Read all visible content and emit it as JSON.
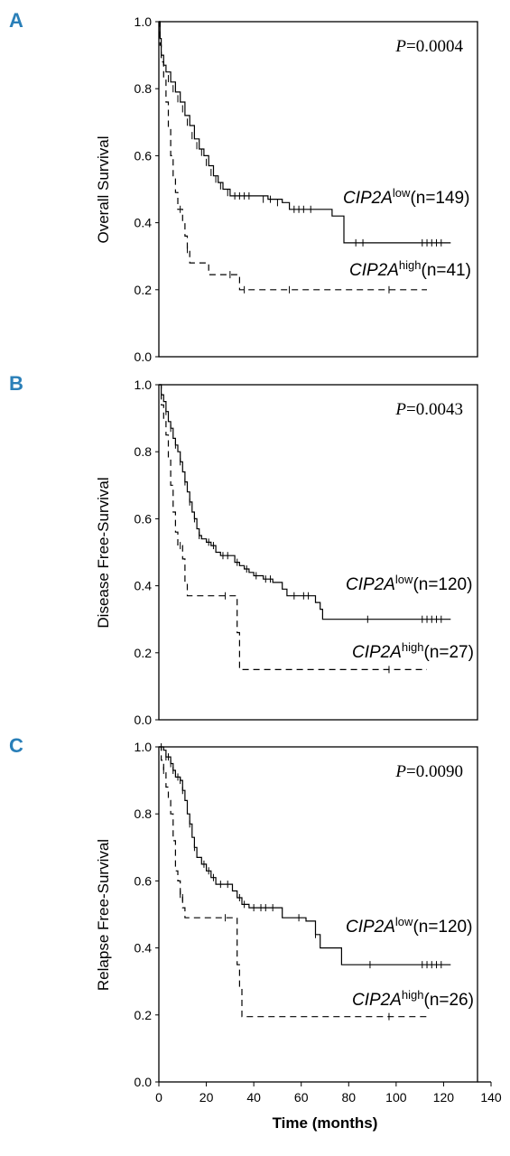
{
  "chart_data": [
    {
      "type": "line",
      "panel": "A",
      "ylabel": "Overall Survival",
      "ylim": [
        0,
        1.0
      ],
      "yticks": [
        "0.0",
        "0.2",
        "0.4",
        "0.6",
        "0.8",
        "1.0"
      ],
      "xlim": [
        0,
        140
      ],
      "p_value": "P=0.0004",
      "series": [
        {
          "name": "CIP2Alow (n=149)",
          "label_gene": "CIP2A",
          "label_sup": "low",
          "label_n": "(n=149)",
          "style": "solid",
          "steps": [
            [
              0,
              1.0
            ],
            [
              0.5,
              0.95
            ],
            [
              1,
              0.9
            ],
            [
              2,
              0.87
            ],
            [
              3,
              0.85
            ],
            [
              5,
              0.82
            ],
            [
              7,
              0.79
            ],
            [
              9,
              0.76
            ],
            [
              11,
              0.72
            ],
            [
              13,
              0.69
            ],
            [
              15,
              0.65
            ],
            [
              17,
              0.62
            ],
            [
              19,
              0.6
            ],
            [
              21,
              0.57
            ],
            [
              23,
              0.54
            ],
            [
              25,
              0.52
            ],
            [
              27,
              0.5
            ],
            [
              30,
              0.48
            ],
            [
              39,
              0.48
            ],
            [
              46,
              0.47
            ],
            [
              52,
              0.46
            ],
            [
              55,
              0.44
            ],
            [
              64,
              0.44
            ],
            [
              73,
              0.42
            ],
            [
              76,
              0.42
            ],
            [
              78,
              0.34
            ],
            [
              123,
              0.34
            ]
          ],
          "censors": [
            [
              4,
              0.83
            ],
            [
              6,
              0.8
            ],
            [
              8,
              0.77
            ],
            [
              10,
              0.74
            ],
            [
              12,
              0.7
            ],
            [
              14,
              0.66
            ],
            [
              16,
              0.63
            ],
            [
              18,
              0.61
            ],
            [
              20,
              0.58
            ],
            [
              22,
              0.55
            ],
            [
              24,
              0.53
            ],
            [
              26,
              0.51
            ],
            [
              29,
              0.49
            ],
            [
              32,
              0.48
            ],
            [
              34,
              0.48
            ],
            [
              36,
              0.48
            ],
            [
              38,
              0.48
            ],
            [
              44,
              0.47
            ],
            [
              47,
              0.47
            ],
            [
              50,
              0.46
            ],
            [
              57,
              0.44
            ],
            [
              59,
              0.44
            ],
            [
              61,
              0.44
            ],
            [
              64,
              0.44
            ],
            [
              83,
              0.34
            ],
            [
              86,
              0.34
            ],
            [
              111,
              0.34
            ],
            [
              113,
              0.34
            ],
            [
              115,
              0.34
            ],
            [
              117,
              0.34
            ],
            [
              119,
              0.34
            ]
          ]
        },
        {
          "name": "CIP2Ahigh (n=41)",
          "label_gene": "CIP2A",
          "label_sup": "high",
          "label_n": "(n=41)",
          "style": "dashed",
          "steps": [
            [
              0,
              1.0
            ],
            [
              0.5,
              0.93
            ],
            [
              1,
              0.88
            ],
            [
              2,
              0.83
            ],
            [
              3,
              0.76
            ],
            [
              4,
              0.68
            ],
            [
              5,
              0.6
            ],
            [
              6,
              0.54
            ],
            [
              7,
              0.49
            ],
            [
              8,
              0.44
            ],
            [
              10,
              0.4
            ],
            [
              11,
              0.36
            ],
            [
              12,
              0.32
            ],
            [
              13,
              0.28
            ],
            [
              20,
              0.28
            ],
            [
              21,
              0.245
            ],
            [
              33,
              0.245
            ],
            [
              34,
              0.2
            ],
            [
              113,
              0.2
            ]
          ],
          "censors": [
            [
              9,
              0.44
            ],
            [
              12,
              0.32
            ],
            [
              30,
              0.245
            ],
            [
              36,
              0.2
            ],
            [
              55,
              0.2
            ],
            [
              97,
              0.2
            ]
          ]
        }
      ]
    },
    {
      "type": "line",
      "panel": "B",
      "ylabel": "Disease Free-Survival",
      "ylim": [
        0,
        1.0
      ],
      "yticks": [
        "0.0",
        "0.2",
        "0.4",
        "0.6",
        "0.8",
        "1.0"
      ],
      "xlim": [
        0,
        140
      ],
      "p_value": "P=0.0043",
      "series": [
        {
          "name": "CIP2Alow(n=120)",
          "label_gene": "CIP2A",
          "label_sup": "low",
          "label_n": "(n=120)",
          "style": "solid",
          "steps": [
            [
              0,
              1.0
            ],
            [
              1,
              0.97
            ],
            [
              2,
              0.95
            ],
            [
              3,
              0.92
            ],
            [
              4,
              0.89
            ],
            [
              5,
              0.87
            ],
            [
              6,
              0.84
            ],
            [
              7,
              0.82
            ],
            [
              8,
              0.8
            ],
            [
              9,
              0.77
            ],
            [
              10,
              0.74
            ],
            [
              11,
              0.71
            ],
            [
              12,
              0.68
            ],
            [
              13,
              0.65
            ],
            [
              14,
              0.62
            ],
            [
              15,
              0.6
            ],
            [
              16,
              0.57
            ],
            [
              17,
              0.55
            ],
            [
              18,
              0.54
            ],
            [
              20,
              0.53
            ],
            [
              22,
              0.52
            ],
            [
              24,
              0.5
            ],
            [
              26,
              0.49
            ],
            [
              30,
              0.49
            ],
            [
              32,
              0.47
            ],
            [
              34,
              0.46
            ],
            [
              36,
              0.45
            ],
            [
              38,
              0.44
            ],
            [
              40,
              0.43
            ],
            [
              44,
              0.42
            ],
            [
              48,
              0.41
            ],
            [
              52,
              0.39
            ],
            [
              54,
              0.37
            ],
            [
              64,
              0.37
            ],
            [
              66,
              0.35
            ],
            [
              68,
              0.33
            ],
            [
              69,
              0.3
            ],
            [
              123,
              0.3
            ]
          ],
          "censors": [
            [
              3,
              0.92
            ],
            [
              5,
              0.87
            ],
            [
              7,
              0.82
            ],
            [
              9,
              0.77
            ],
            [
              11,
              0.71
            ],
            [
              13,
              0.65
            ],
            [
              15,
              0.6
            ],
            [
              17,
              0.55
            ],
            [
              21,
              0.53
            ],
            [
              23,
              0.52
            ],
            [
              27,
              0.49
            ],
            [
              29,
              0.49
            ],
            [
              33,
              0.47
            ],
            [
              37,
              0.45
            ],
            [
              41,
              0.43
            ],
            [
              45,
              0.42
            ],
            [
              47,
              0.42
            ],
            [
              57,
              0.37
            ],
            [
              61,
              0.37
            ],
            [
              63,
              0.37
            ],
            [
              88,
              0.3
            ],
            [
              111,
              0.3
            ],
            [
              113,
              0.3
            ],
            [
              115,
              0.3
            ],
            [
              117,
              0.3
            ],
            [
              119,
              0.3
            ]
          ]
        },
        {
          "name": "CIP2Ahigh(n=27)",
          "label_gene": "CIP2A",
          "label_sup": "high",
          "label_n": "(n=27)",
          "style": "dashed",
          "steps": [
            [
              0,
              1.0
            ],
            [
              1,
              0.94
            ],
            [
              2,
              0.9
            ],
            [
              3,
              0.85
            ],
            [
              4,
              0.78
            ],
            [
              5,
              0.7
            ],
            [
              6,
              0.62
            ],
            [
              7,
              0.56
            ],
            [
              8,
              0.52
            ],
            [
              10,
              0.48
            ],
            [
              11,
              0.41
            ],
            [
              12,
              0.37
            ],
            [
              32,
              0.37
            ],
            [
              33,
              0.26
            ],
            [
              34,
              0.15
            ],
            [
              113,
              0.15
            ]
          ],
          "censors": [
            [
              9,
              0.52
            ],
            [
              28,
              0.37
            ],
            [
              97,
              0.15
            ]
          ]
        }
      ]
    },
    {
      "type": "line",
      "panel": "C",
      "ylabel": "Relapse Free-Survival",
      "xlabel": "Time (months)",
      "ylim": [
        0,
        1.0
      ],
      "yticks": [
        "0.0",
        "0.2",
        "0.4",
        "0.6",
        "0.8",
        "1.0"
      ],
      "xlim": [
        0,
        140
      ],
      "xticks": [
        "0",
        "20",
        "40",
        "60",
        "80",
        "100",
        "120",
        "140"
      ],
      "p_value": "P=0.0090",
      "series": [
        {
          "name": "CIP2Alow(n=120)",
          "label_gene": "CIP2A",
          "label_sup": "low",
          "label_n": "(n=120)",
          "style": "solid",
          "steps": [
            [
              0,
              1.0
            ],
            [
              2,
              0.99
            ],
            [
              3,
              0.97
            ],
            [
              5,
              0.95
            ],
            [
              6,
              0.93
            ],
            [
              7,
              0.91
            ],
            [
              9,
              0.9
            ],
            [
              10,
              0.87
            ],
            [
              11,
              0.84
            ],
            [
              12,
              0.8
            ],
            [
              13,
              0.77
            ],
            [
              14,
              0.73
            ],
            [
              15,
              0.7
            ],
            [
              16,
              0.67
            ],
            [
              18,
              0.65
            ],
            [
              20,
              0.63
            ],
            [
              22,
              0.61
            ],
            [
              24,
              0.59
            ],
            [
              28,
              0.59
            ],
            [
              31,
              0.57
            ],
            [
              33,
              0.55
            ],
            [
              35,
              0.53
            ],
            [
              38,
              0.52
            ],
            [
              50,
              0.52
            ],
            [
              52,
              0.49
            ],
            [
              60,
              0.49
            ],
            [
              62,
              0.48
            ],
            [
              66,
              0.44
            ],
            [
              68,
              0.4
            ],
            [
              75,
              0.4
            ],
            [
              77,
              0.35
            ],
            [
              123,
              0.35
            ]
          ],
          "censors": [
            [
              1,
              1.0
            ],
            [
              3,
              0.97
            ],
            [
              4,
              0.97
            ],
            [
              5,
              0.95
            ],
            [
              6,
              0.93
            ],
            [
              8,
              0.91
            ],
            [
              9,
              0.9
            ],
            [
              10,
              0.87
            ],
            [
              13,
              0.77
            ],
            [
              15,
              0.7
            ],
            [
              19,
              0.65
            ],
            [
              21,
              0.63
            ],
            [
              23,
              0.61
            ],
            [
              26,
              0.59
            ],
            [
              29,
              0.59
            ],
            [
              34,
              0.55
            ],
            [
              36,
              0.53
            ],
            [
              40,
              0.52
            ],
            [
              43,
              0.52
            ],
            [
              45,
              0.52
            ],
            [
              48,
              0.52
            ],
            [
              59,
              0.49
            ],
            [
              66,
              0.44
            ],
            [
              89,
              0.35
            ],
            [
              111,
              0.35
            ],
            [
              113,
              0.35
            ],
            [
              115,
              0.35
            ],
            [
              117,
              0.35
            ],
            [
              119,
              0.35
            ]
          ]
        },
        {
          "name": "CIP2Ahigh(n=26)",
          "label_gene": "CIP2A",
          "label_sup": "high",
          "label_n": "(n=26)",
          "style": "dashed",
          "steps": [
            [
              0,
              1.0
            ],
            [
              1,
              0.96
            ],
            [
              2,
              0.93
            ],
            [
              3,
              0.88
            ],
            [
              4,
              0.84
            ],
            [
              5,
              0.8
            ],
            [
              6,
              0.72
            ],
            [
              7,
              0.63
            ],
            [
              8,
              0.6
            ],
            [
              9,
              0.56
            ],
            [
              10,
              0.52
            ],
            [
              11,
              0.49
            ],
            [
              32,
              0.49
            ],
            [
              33,
              0.35
            ],
            [
              34,
              0.28
            ],
            [
              35,
              0.195
            ],
            [
              113,
              0.195
            ]
          ],
          "censors": [
            [
              2,
              0.93
            ],
            [
              9,
              0.56
            ],
            [
              10,
              0.55
            ],
            [
              28,
              0.49
            ],
            [
              97,
              0.195
            ]
          ]
        }
      ]
    }
  ]
}
